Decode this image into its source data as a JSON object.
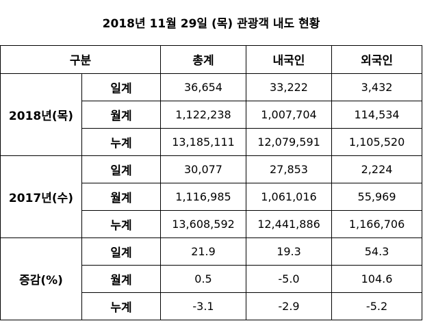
{
  "title": "2018년 11월 29일 (목) 관광객 내도 현황",
  "header": {
    "category": "구분",
    "columns": [
      "총계",
      "내국인",
      "외국인"
    ]
  },
  "groups": [
    {
      "label": "2018년(목)",
      "rows": [
        {
          "kind": "일계",
          "values": [
            "36,654",
            "33,222",
            "3,432"
          ]
        },
        {
          "kind": "월계",
          "values": [
            "1,122,238",
            "1,007,704",
            "114,534"
          ]
        },
        {
          "kind": "누계",
          "values": [
            "13,185,111",
            "12,079,591",
            "1,105,520"
          ]
        }
      ]
    },
    {
      "label": "2017년(수)",
      "rows": [
        {
          "kind": "일계",
          "values": [
            "30,077",
            "27,853",
            "2,224"
          ]
        },
        {
          "kind": "월계",
          "values": [
            "1,116,985",
            "1,061,016",
            "55,969"
          ]
        },
        {
          "kind": "누계",
          "values": [
            "13,608,592",
            "12,441,886",
            "1,166,706"
          ]
        }
      ]
    },
    {
      "label": "증감(%)",
      "rows": [
        {
          "kind": "일계",
          "values": [
            "21.9",
            "19.3",
            "54.3"
          ]
        },
        {
          "kind": "월계",
          "values": [
            "0.5",
            "-5.0",
            "104.6"
          ]
        },
        {
          "kind": "누계",
          "values": [
            "-3.1",
            "-2.9",
            "-5.2"
          ]
        }
      ]
    }
  ]
}
